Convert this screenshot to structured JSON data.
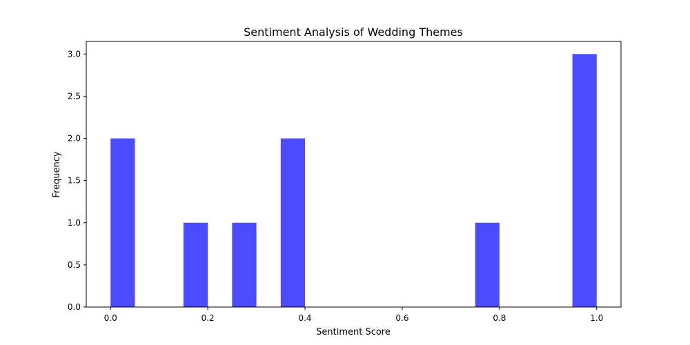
{
  "chart_data": {
    "type": "bar",
    "title": "Sentiment Analysis of Wedding Themes",
    "xlabel": "Sentiment Score",
    "ylabel": "Frequency",
    "xlim": [
      -0.05,
      1.05
    ],
    "ylim": [
      0,
      3.15
    ],
    "x_ticks": [
      0.0,
      0.2,
      0.4,
      0.6,
      0.8,
      1.0
    ],
    "x_tick_labels": [
      "0.0",
      "0.2",
      "0.4",
      "0.6",
      "0.8",
      "1.0"
    ],
    "y_ticks": [
      0.0,
      0.5,
      1.0,
      1.5,
      2.0,
      2.5,
      3.0
    ],
    "y_tick_labels": [
      "0.0",
      "0.5",
      "1.0",
      "1.5",
      "2.0",
      "2.5",
      "3.0"
    ],
    "bar_color": "#4b4bff",
    "bins": [
      {
        "start": 0.0,
        "end": 0.05,
        "value": 2
      },
      {
        "start": 0.15,
        "end": 0.2,
        "value": 1
      },
      {
        "start": 0.25,
        "end": 0.3,
        "value": 1
      },
      {
        "start": 0.35,
        "end": 0.4,
        "value": 2
      },
      {
        "start": 0.75,
        "end": 0.8,
        "value": 1
      },
      {
        "start": 0.95,
        "end": 1.0,
        "value": 3
      }
    ],
    "grid": false,
    "legend": "none"
  }
}
